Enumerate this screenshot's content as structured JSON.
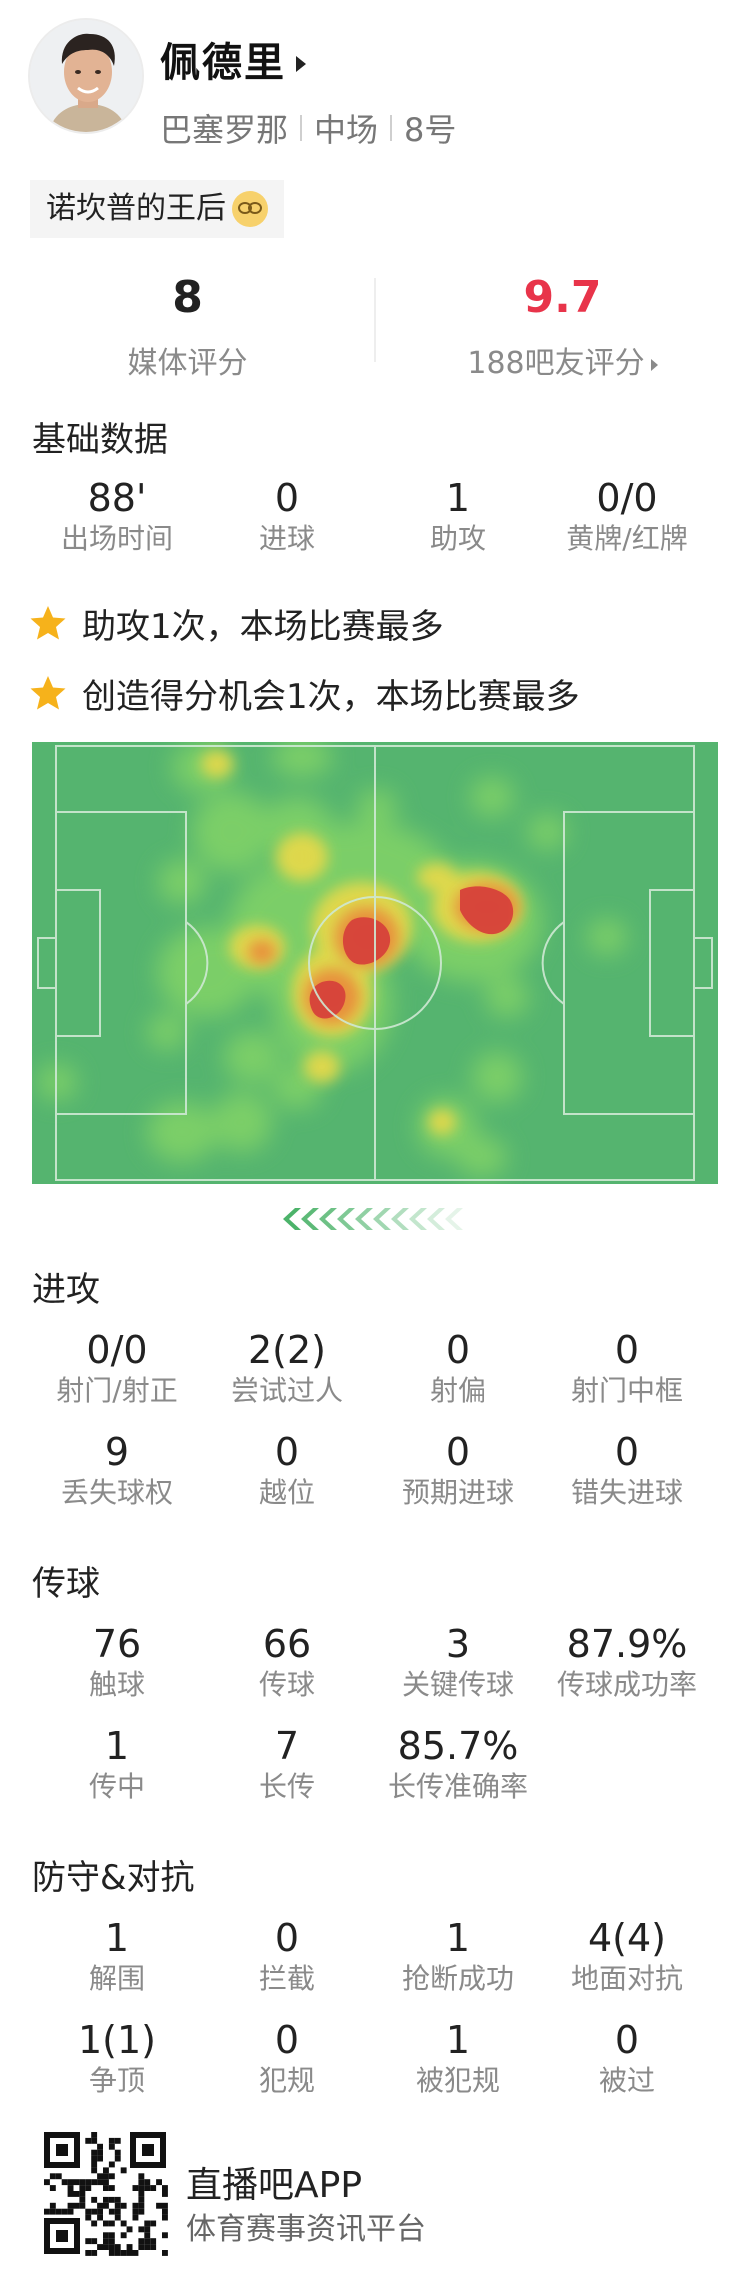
{
  "player": {
    "name": "佩德里",
    "team": "巴塞罗那",
    "position": "中场",
    "number": "8号",
    "nickname": "诺坎普的王后"
  },
  "ratings": {
    "media": {
      "value": "8",
      "label": "媒体评分",
      "color": "#222222"
    },
    "fans": {
      "value": "9.7",
      "label": "188吧友评分",
      "color": "#e8344a"
    }
  },
  "basic": {
    "title": "基础数据",
    "stats": [
      {
        "value": "88'",
        "label": "出场时间"
      },
      {
        "value": "0",
        "label": "进球"
      },
      {
        "value": "1",
        "label": "助攻"
      },
      {
        "value": "0/0",
        "label": "黄牌/红牌"
      }
    ]
  },
  "highlights": [
    {
      "icon": "star-icon",
      "text": "助攻1次，本场比赛最多"
    },
    {
      "icon": "star-icon",
      "text": "创造得分机会1次，本场比赛最多"
    }
  ],
  "heatmap": {
    "pitch_color": "#55b46f",
    "hot_color": "#d7423a",
    "attack_direction": "left-to-right"
  },
  "attack": {
    "title": "进攻",
    "rows": [
      [
        {
          "value": "0/0",
          "label": "射门/射正"
        },
        {
          "value": "2(2)",
          "label": "尝试过人"
        },
        {
          "value": "0",
          "label": "射偏"
        },
        {
          "value": "0",
          "label": "射门中框"
        }
      ],
      [
        {
          "value": "9",
          "label": "丢失球权"
        },
        {
          "value": "0",
          "label": "越位"
        },
        {
          "value": "0",
          "label": "预期进球"
        },
        {
          "value": "0",
          "label": "错失进球"
        }
      ]
    ]
  },
  "passing": {
    "title": "传球",
    "rows": [
      [
        {
          "value": "76",
          "label": "触球"
        },
        {
          "value": "66",
          "label": "传球"
        },
        {
          "value": "3",
          "label": "关键传球"
        },
        {
          "value": "87.9%",
          "label": "传球成功率"
        }
      ],
      [
        {
          "value": "1",
          "label": "传中"
        },
        {
          "value": "7",
          "label": "长传"
        },
        {
          "value": "85.7%",
          "label": "长传准确率"
        }
      ]
    ]
  },
  "defense": {
    "title": "防守&对抗",
    "rows": [
      [
        {
          "value": "1",
          "label": "解围"
        },
        {
          "value": "0",
          "label": "拦截"
        },
        {
          "value": "1",
          "label": "抢断成功"
        },
        {
          "value": "4(4)",
          "label": "地面对抗"
        }
      ],
      [
        {
          "value": "1(1)",
          "label": "争顶"
        },
        {
          "value": "0",
          "label": "犯规"
        },
        {
          "value": "1",
          "label": "被犯规"
        },
        {
          "value": "0",
          "label": "被过"
        }
      ]
    ]
  },
  "footer": {
    "app_name": "直播吧APP",
    "app_sub": "体育赛事资讯平台"
  }
}
